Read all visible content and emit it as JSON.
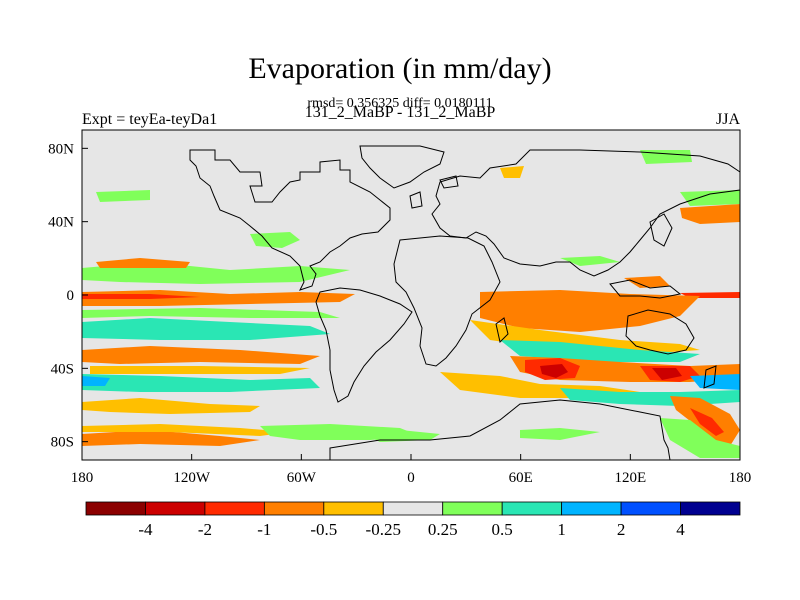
{
  "title": "Evaporation (in mm/day)",
  "stats": "rmsd= 0.356325 diff= 0.0180111",
  "left_label": "Expt = teyEa-teyDa1",
  "center_label": "131_2_MaBP - 131_2_MaBP",
  "right_label": "JJA",
  "map": {
    "lon_range": [
      -180,
      180
    ],
    "lat_range": [
      -90,
      90
    ],
    "x_ticks": [
      {
        "lon": -180,
        "label": "180"
      },
      {
        "lon": -120,
        "label": "120W"
      },
      {
        "lon": -60,
        "label": "60W"
      },
      {
        "lon": 0,
        "label": "0"
      },
      {
        "lon": 60,
        "label": "60E"
      },
      {
        "lon": 120,
        "label": "120E"
      },
      {
        "lon": 180,
        "label": "180"
      }
    ],
    "y_ticks": [
      {
        "lat": 80,
        "label": "80N"
      },
      {
        "lat": 40,
        "label": "40N"
      },
      {
        "lat": 0,
        "label": "0"
      },
      {
        "lat": -40,
        "label": "40S"
      },
      {
        "lat": -80,
        "label": "80S"
      }
    ],
    "background_color": "#e6e6e6"
  },
  "colorbar": {
    "colors": [
      "#8b0000",
      "#cc0000",
      "#ff2a00",
      "#ff7f00",
      "#ffbf00",
      "#e6e6e6",
      "#80ff5a",
      "#2ae6b4",
      "#00b4ff",
      "#0050ff",
      "#000090"
    ],
    "labels": [
      "-4",
      "-2",
      "-1",
      "-0.5",
      "-0.25",
      "0.25",
      "0.5",
      "1",
      "2",
      "4"
    ]
  }
}
